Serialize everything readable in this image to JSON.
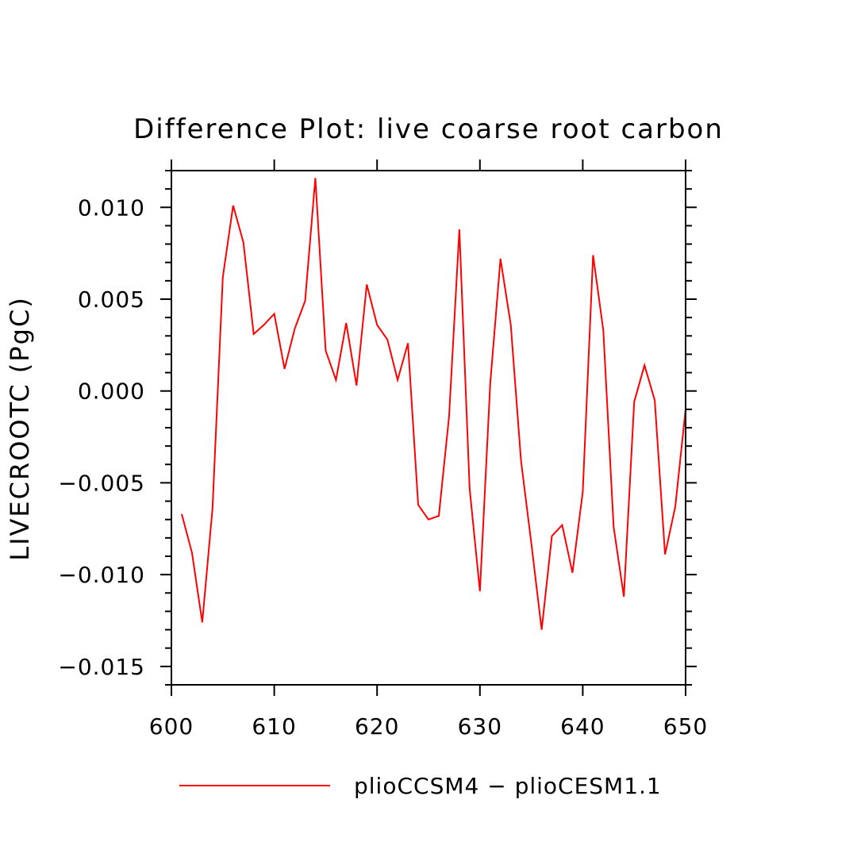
{
  "chart_data": {
    "type": "line",
    "title": "Difference Plot: live coarse root carbon",
    "xlabel": "",
    "ylabel": "LIVECROOTC  (PgC)",
    "xlim": [
      600,
      650
    ],
    "ylim": [
      -0.016,
      0.012
    ],
    "x_ticks": [
      600,
      610,
      620,
      630,
      640,
      650
    ],
    "x_tick_labels": [
      "600",
      "610",
      "620",
      "630",
      "640",
      "650"
    ],
    "y_ticks": [
      -0.015,
      -0.01,
      -0.005,
      0.0,
      0.005,
      0.01
    ],
    "y_tick_labels": [
      "−0.015",
      "−0.010",
      "−0.005",
      "0.000",
      "0.005",
      "0.010"
    ],
    "grid": false,
    "legend_position": "bottom",
    "series": [
      {
        "name": "plioCCSM4 − plioCESM1.1",
        "color": "#ff0000",
        "x": [
          601,
          602,
          603,
          604,
          605,
          606,
          607,
          608,
          609,
          610,
          611,
          612,
          613,
          614,
          615,
          616,
          617,
          618,
          619,
          620,
          621,
          622,
          623,
          624,
          625,
          626,
          627,
          628,
          629,
          630,
          631,
          632,
          633,
          634,
          635,
          636,
          637,
          638,
          639,
          640,
          641,
          642,
          643,
          644,
          645,
          646,
          647,
          648,
          649,
          650
        ],
        "y": [
          -0.0067,
          -0.0088,
          -0.0126,
          -0.0064,
          0.0062,
          0.0101,
          0.0081,
          0.0031,
          0.0036,
          0.0042,
          0.0012,
          0.0034,
          0.0049,
          0.0116,
          0.0022,
          0.0006,
          0.0037,
          0.0003,
          0.0058,
          0.0036,
          0.0028,
          0.0006,
          0.0026,
          -0.0062,
          -0.007,
          -0.0068,
          -0.0014,
          0.0088,
          -0.0053,
          -0.0109,
          0.0004,
          0.0072,
          0.0036,
          -0.0038,
          -0.0083,
          -0.013,
          -0.0079,
          -0.0073,
          -0.0099,
          -0.0055,
          0.0074,
          0.0033,
          -0.0074,
          -0.0112,
          -0.0006,
          0.0014,
          -0.0005,
          -0.0089,
          -0.0063,
          -0.001
        ]
      }
    ]
  }
}
